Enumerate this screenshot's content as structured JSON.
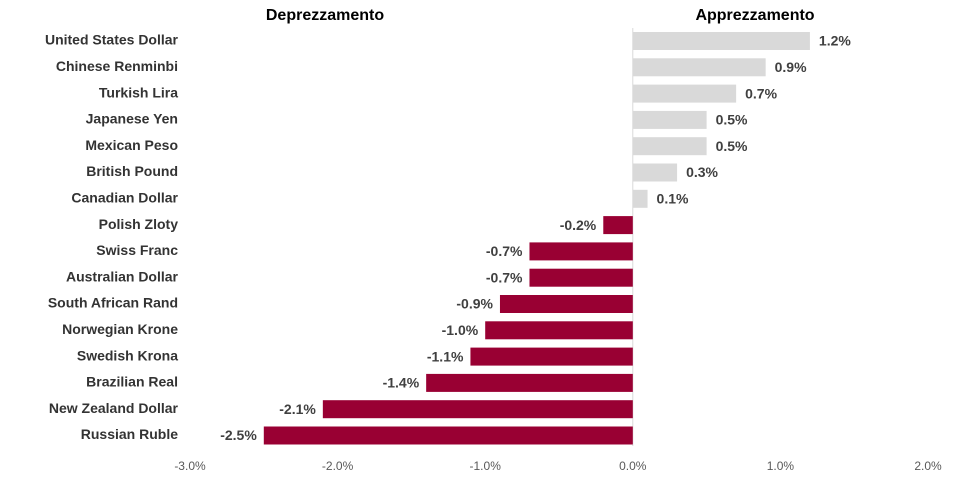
{
  "chart_data": {
    "type": "bar",
    "orientation": "horizontal",
    "annotations": [
      "Deprezzamento",
      "Apprezzamento"
    ],
    "categories": [
      "United States Dollar",
      "Chinese Renminbi",
      "Turkish Lira",
      "Japanese Yen",
      "Mexican Peso",
      "British Pound",
      "Canadian Dollar",
      "Polish Zloty",
      "Swiss Franc",
      "Australian Dollar",
      "South African Rand",
      "Norwegian Krone",
      "Swedish Krona",
      "Brazilian Real",
      "New Zealand Dollar",
      "Russian Ruble"
    ],
    "values": [
      1.2,
      0.9,
      0.7,
      0.5,
      0.5,
      0.3,
      0.1,
      -0.2,
      -0.7,
      -0.7,
      -0.9,
      -1.0,
      -1.1,
      -1.4,
      -2.1,
      -2.5
    ],
    "value_labels": [
      "1.2%",
      "0.9%",
      "0.7%",
      "0.5%",
      "0.5%",
      "0.3%",
      "0.1%",
      "-0.2%",
      "-0.7%",
      "-0.7%",
      "-0.9%",
      "-1.0%",
      "-1.1%",
      "-1.4%",
      "-2.1%",
      "-2.5%"
    ],
    "colors": [
      "#d9d9d9",
      "#d9d9d9",
      "#d9d9d9",
      "#d9d9d9",
      "#d9d9d9",
      "#d9d9d9",
      "#d9d9d9",
      "#990033",
      "#990033",
      "#990033",
      "#990033",
      "#990033",
      "#990033",
      "#990033",
      "#990033",
      "#990033"
    ],
    "xlim": [
      -3,
      2
    ],
    "xticks": [
      {
        "value": -3,
        "label": "-3.0%"
      },
      {
        "value": -2,
        "label": "-2.0%"
      },
      {
        "value": -1,
        "label": "-1.0%"
      },
      {
        "value": 0,
        "label": "0.0%"
      },
      {
        "value": 1,
        "label": "1.0%"
      },
      {
        "value": 2,
        "label": "2.0%"
      }
    ],
    "grid": false
  }
}
